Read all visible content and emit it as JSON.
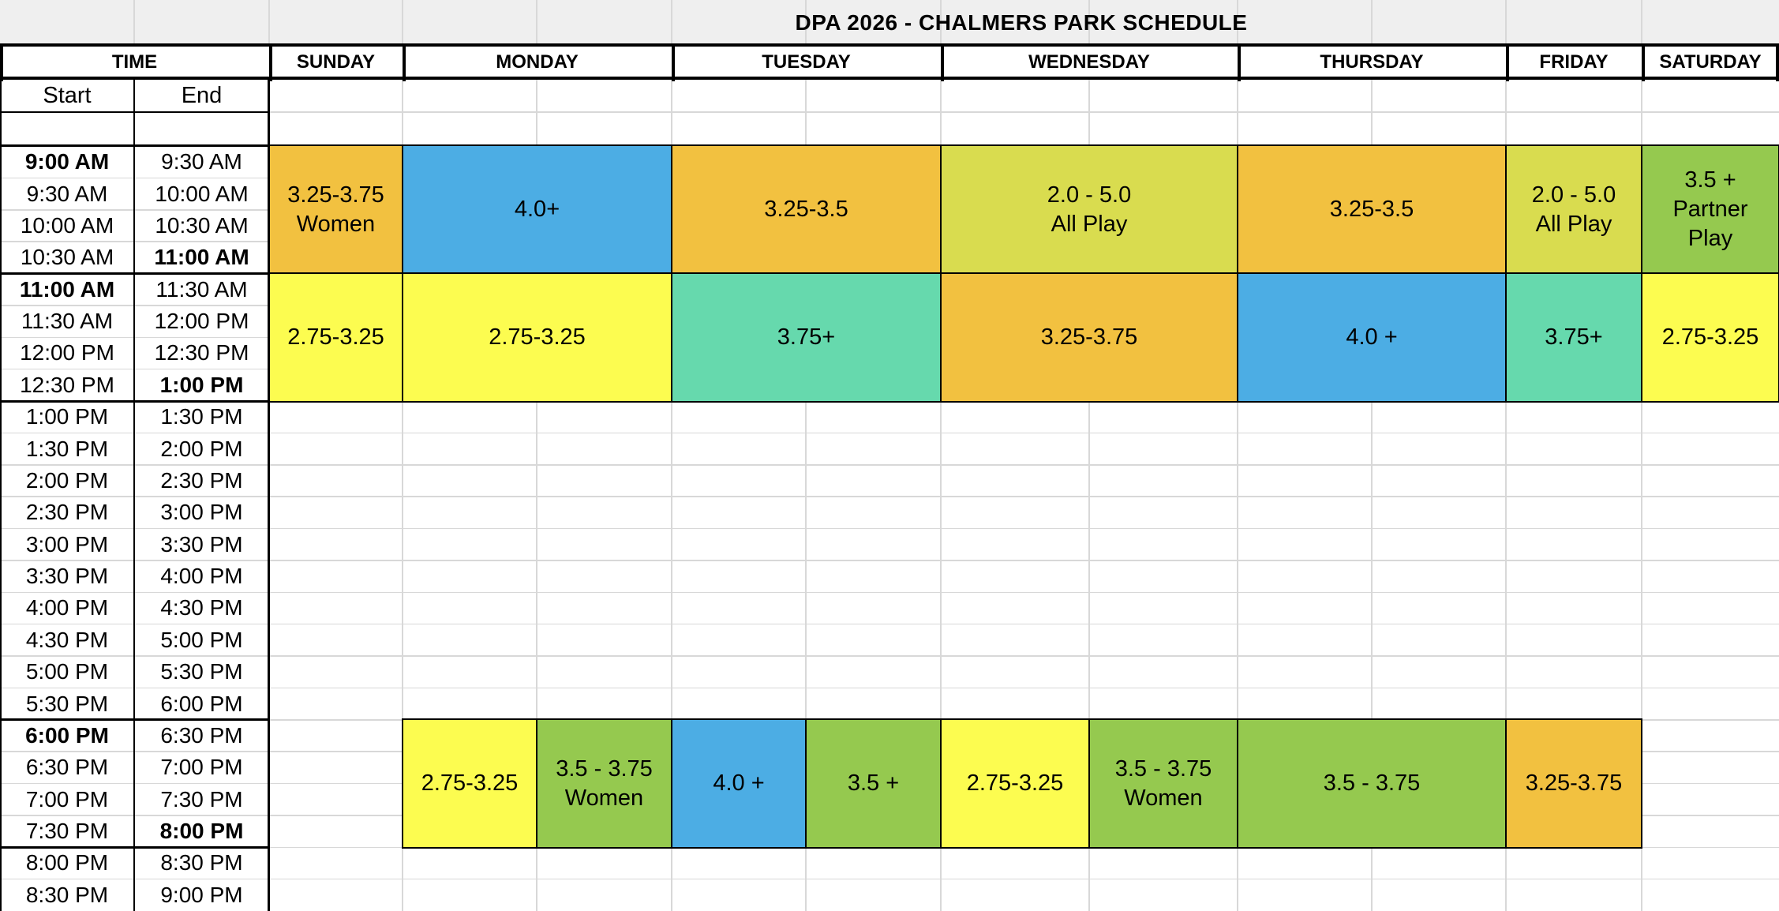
{
  "title": "DPA 2026 - CHALMERS PARK SCHEDULE",
  "header": {
    "time_label": "TIME",
    "start_label": "Start",
    "end_label": "End",
    "days": [
      "SUNDAY",
      "MONDAY",
      "TUESDAY",
      "WEDNESDAY",
      "THURSDAY",
      "FRIDAY",
      "SATURDAY"
    ]
  },
  "colors": {
    "orange": "#F2C140",
    "blue": "#4CADE4",
    "yellow": "#FCFC50",
    "lime": "#D9DC4F",
    "teal": "#66D9AD",
    "green": "#95C94F",
    "title_bg": "#EFEFEF",
    "gridline": "#D8D8D8",
    "border": "#000000"
  },
  "time_rows": [
    {
      "start": "9:00 AM",
      "end": "9:30 AM",
      "start_bold": true
    },
    {
      "start": "9:30 AM",
      "end": "10:00 AM"
    },
    {
      "start": "10:00 AM",
      "end": "10:30 AM"
    },
    {
      "start": "10:30 AM",
      "end": "11:00 AM",
      "end_bold": true
    },
    {
      "start": "11:00 AM",
      "end": "11:30 AM",
      "start_bold": true
    },
    {
      "start": "11:30 AM",
      "end": "12:00 PM"
    },
    {
      "start": "12:00 PM",
      "end": "12:30 PM"
    },
    {
      "start": "12:30 PM",
      "end": "1:00 PM",
      "end_bold": true
    },
    {
      "start": "1:00 PM",
      "end": "1:30 PM"
    },
    {
      "start": "1:30 PM",
      "end": "2:00 PM"
    },
    {
      "start": "2:00 PM",
      "end": "2:30 PM"
    },
    {
      "start": "2:30 PM",
      "end": "3:00 PM"
    },
    {
      "start": "3:00 PM",
      "end": "3:30 PM"
    },
    {
      "start": "3:30 PM",
      "end": "4:00 PM"
    },
    {
      "start": "4:00 PM",
      "end": "4:30 PM"
    },
    {
      "start": "4:30 PM",
      "end": "5:00 PM"
    },
    {
      "start": "5:00 PM",
      "end": "5:30 PM"
    },
    {
      "start": "5:30 PM",
      "end": "6:00 PM"
    },
    {
      "start": "6:00 PM",
      "end": "6:30 PM",
      "start_bold": true
    },
    {
      "start": "6:30 PM",
      "end": "7:00 PM"
    },
    {
      "start": "7:00 PM",
      "end": "7:30 PM"
    },
    {
      "start": "7:30 PM",
      "end": "8:00 PM",
      "end_bold": true
    },
    {
      "start": "8:00 PM",
      "end": "8:30 PM"
    },
    {
      "start": "8:30 PM",
      "end": "9:00 PM"
    }
  ],
  "schedule_blocks": [
    {
      "period": "morning",
      "day": "SUNDAY",
      "portion": "full",
      "label": "3.25-3.75\nWomen",
      "color": "orange"
    },
    {
      "period": "morning",
      "day": "MONDAY",
      "portion": "full",
      "label": "4.0+",
      "color": "blue"
    },
    {
      "period": "morning",
      "day": "TUESDAY",
      "portion": "full",
      "label": "3.25-3.5",
      "color": "orange"
    },
    {
      "period": "morning",
      "day": "WEDNESDAY",
      "portion": "full",
      "label": "2.0 - 5.0\nAll Play",
      "color": "lime"
    },
    {
      "period": "morning",
      "day": "THURSDAY",
      "portion": "full",
      "label": "3.25-3.5",
      "color": "orange"
    },
    {
      "period": "morning",
      "day": "FRIDAY",
      "portion": "full",
      "label": "2.0 - 5.0\nAll Play",
      "color": "lime"
    },
    {
      "period": "morning",
      "day": "SATURDAY",
      "portion": "full",
      "label": "3.5 +\nPartner\nPlay",
      "color": "green"
    },
    {
      "period": "midday",
      "day": "SUNDAY",
      "portion": "full",
      "label": "2.75-3.25",
      "color": "yellow"
    },
    {
      "period": "midday",
      "day": "MONDAY",
      "portion": "full",
      "label": "2.75-3.25",
      "color": "yellow"
    },
    {
      "period": "midday",
      "day": "TUESDAY",
      "portion": "full",
      "label": "3.75+",
      "color": "teal"
    },
    {
      "period": "midday",
      "day": "WEDNESDAY",
      "portion": "full",
      "label": "3.25-3.75",
      "color": "orange"
    },
    {
      "period": "midday",
      "day": "THURSDAY",
      "portion": "full",
      "label": "4.0 +",
      "color": "blue"
    },
    {
      "period": "midday",
      "day": "FRIDAY",
      "portion": "full",
      "label": "3.75+",
      "color": "teal"
    },
    {
      "period": "midday",
      "day": "SATURDAY",
      "portion": "full",
      "label": "2.75-3.25",
      "color": "yellow"
    },
    {
      "period": "evening",
      "day": "MONDAY",
      "portion": "left",
      "label": "2.75-3.25",
      "color": "yellow"
    },
    {
      "period": "evening",
      "day": "MONDAY",
      "portion": "right",
      "label": "3.5 - 3.75\nWomen",
      "color": "green"
    },
    {
      "period": "evening",
      "day": "TUESDAY",
      "portion": "left",
      "label": "4.0 +",
      "color": "blue"
    },
    {
      "period": "evening",
      "day": "TUESDAY",
      "portion": "right",
      "label": "3.5 +",
      "color": "green"
    },
    {
      "period": "evening",
      "day": "WEDNESDAY",
      "portion": "left",
      "label": "2.75-3.25",
      "color": "yellow"
    },
    {
      "period": "evening",
      "day": "WEDNESDAY",
      "portion": "right",
      "label": "3.5 - 3.75\nWomen",
      "color": "green"
    },
    {
      "period": "evening",
      "day": "THURSDAY",
      "portion": "full",
      "label": "3.5 - 3.75",
      "color": "green"
    },
    {
      "period": "evening",
      "day": "FRIDAY",
      "portion": "full",
      "label": "3.25-3.75",
      "color": "orange"
    }
  ]
}
